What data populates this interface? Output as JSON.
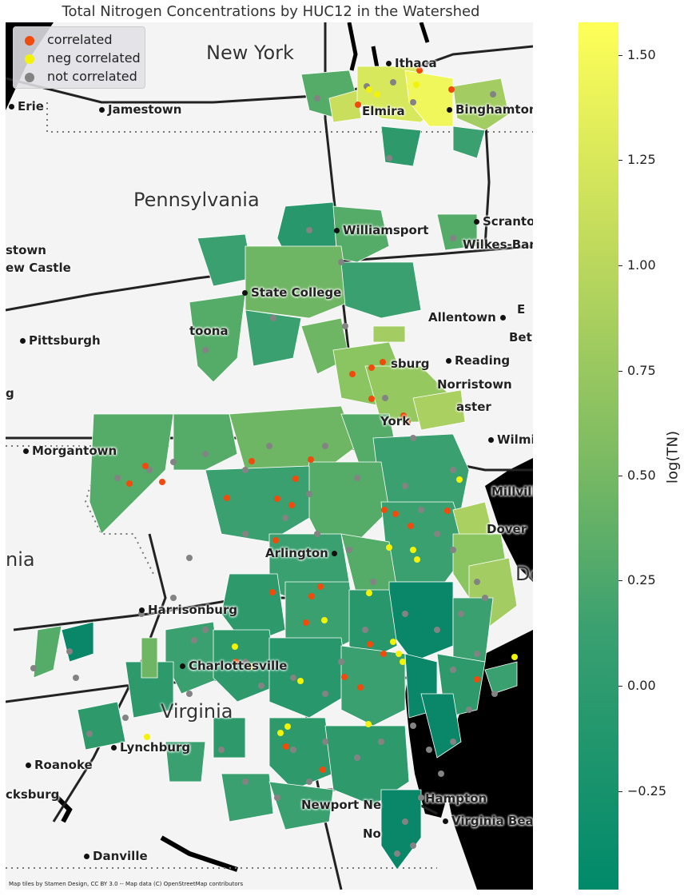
{
  "title": "Total Nitrogen Concentrations by HUC12 in the Watershed",
  "legend": [
    {
      "label": "correlated",
      "color": "#f04a0c"
    },
    {
      "label": "neg correlated",
      "color": "#f3f30a"
    },
    {
      "label": "not correlated",
      "color": "#838383"
    }
  ],
  "map": {
    "attribution": "Map tiles by Stamen Design, CC BY 3.0 -- Map data (C) OpenStreetMap contributors",
    "regions": [
      "New York",
      "Pennsylvania",
      "Virginia",
      "nia",
      "De"
    ],
    "cities": [
      "Ithaca",
      "Erie",
      "Jamestown",
      "Elmira",
      "Binghamton",
      "Scranton",
      "Williamsport",
      "Wilkes-Barr",
      "stown",
      "ew Castle",
      "State College",
      "Allentown",
      "Pittsburgh",
      "toona",
      "Beth",
      "sburg",
      "Reading",
      "Norristown",
      "aster",
      "York",
      "Morgantown",
      "Wilmin",
      "Millville",
      "Dover",
      "Arlington",
      "Harrisonburg",
      "Charlottesville",
      "Lynchburg",
      "Roanoke",
      "cksburg",
      "Newport Ne",
      "Hampton",
      "Virginia Beach",
      "Danville",
      "No",
      "g",
      "E"
    ]
  },
  "colorbar": {
    "label": "log(TN)",
    "min": -0.48,
    "max": 1.58,
    "ticks": [
      "−0.25",
      "0.00",
      "0.25",
      "0.50",
      "0.75",
      "1.00",
      "1.25",
      "1.50"
    ],
    "colors": [
      "#008a6a",
      "#3aa070",
      "#7dbb62",
      "#c2db5c",
      "#ffff58"
    ]
  }
}
